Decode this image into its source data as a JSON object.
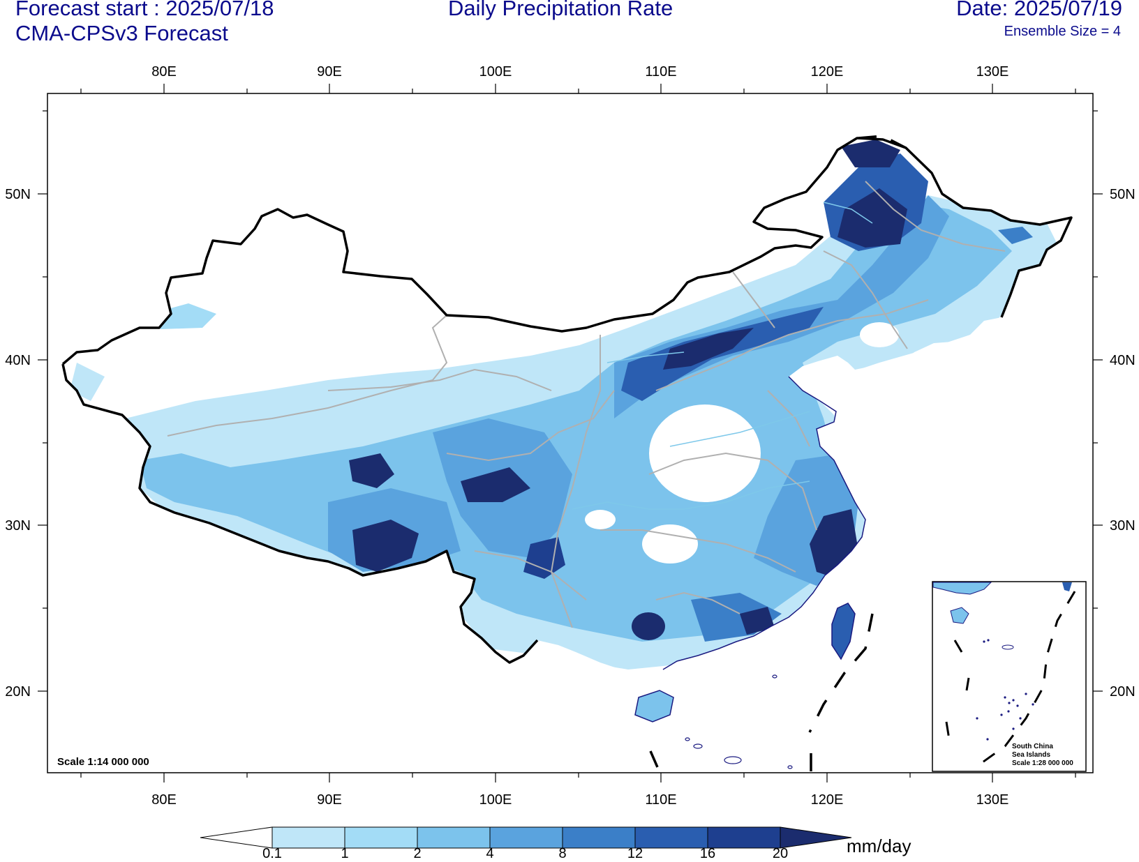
{
  "header": {
    "forecast_start": "Forecast start : 2025/07/18",
    "model": "CMA-CPSv3 Forecast",
    "title": "Daily Precipitation Rate",
    "date": "Date: 2025/07/19",
    "ensemble": "Ensemble Size = 4"
  },
  "map": {
    "lon_labels": [
      "80E",
      "90E",
      "100E",
      "110E",
      "120E",
      "130E"
    ],
    "lat_labels": [
      "50N",
      "40N",
      "30N",
      "20N"
    ],
    "scale_text": "Scale 1:14 000 000",
    "inset": {
      "line1": "South China",
      "line2": "Sea Islands",
      "line3": "Scale 1:28 000 000"
    }
  },
  "colorbar": {
    "unit": "mm/day",
    "levels": [
      "0.1",
      "1",
      "2",
      "4",
      "8",
      "12",
      "16",
      "20"
    ],
    "colors": [
      "#ffffff",
      "#bfe6f8",
      "#a3dcf6",
      "#7cc3ec",
      "#5aa3de",
      "#3b7fc8",
      "#2a5eb0",
      "#1e3f8f",
      "#1b2c6e"
    ]
  },
  "colors": {
    "header_text": "#0b0b8c",
    "border": "#000000",
    "province": "#b0b0b0",
    "coast": "#1a1a80"
  }
}
